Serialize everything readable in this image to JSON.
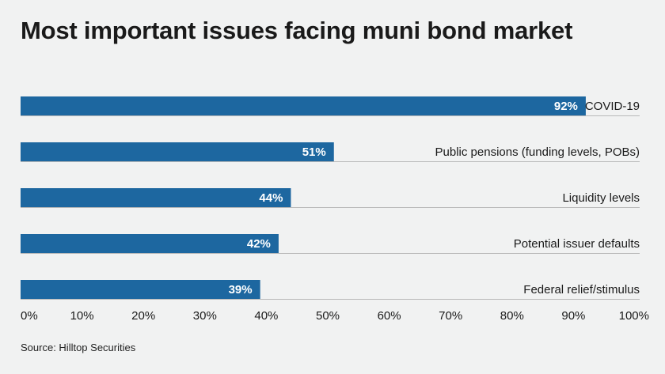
{
  "chart_data": {
    "type": "bar",
    "orientation": "horizontal",
    "title": "Most important issues facing muni bond market",
    "source": "Source: Hilltop Securities",
    "categories": [
      "COVID-19",
      "Public pensions (funding levels, POBs)",
      "Liquidity levels",
      "Potential issuer defaults",
      "Federal relief/stimulus"
    ],
    "values": [
      92,
      51,
      44,
      42,
      39
    ],
    "value_labels": [
      "92%",
      "51%",
      "44%",
      "42%",
      "39%"
    ],
    "xlim": [
      0,
      100
    ],
    "x_ticks": [
      "0%",
      "10%",
      "20%",
      "30%",
      "40%",
      "50%",
      "60%",
      "70%",
      "80%",
      "90%",
      "100%"
    ],
    "grid": false,
    "legend": "none",
    "colors": {
      "bar": "#1d67a0",
      "background": "#f1f2f2",
      "baseline": "#b8b8b8",
      "bar_label": "#ffffff",
      "text": "#1a1a1a"
    }
  }
}
